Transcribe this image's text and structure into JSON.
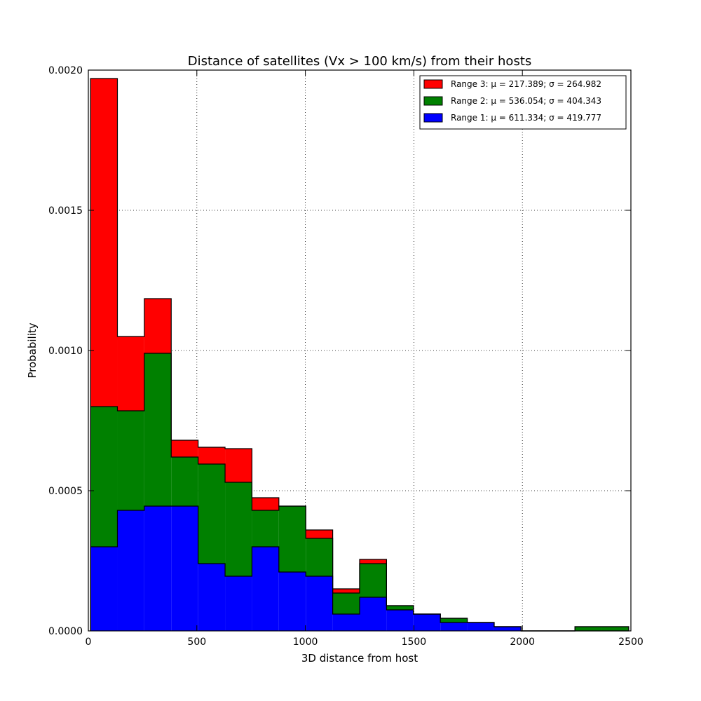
{
  "chart_data": {
    "type": "bar",
    "histogram_type": "stacked",
    "title": "Distance of satellites (Vx > 100 km/s) from their hosts",
    "xlabel": "3D distance from host",
    "ylabel": "Probability",
    "xlim": [
      0,
      2500
    ],
    "ylim": [
      0,
      0.002
    ],
    "x_ticks": [
      0,
      500,
      1000,
      1500,
      2000,
      2500
    ],
    "x_tick_labels": [
      "0",
      "500",
      "1000",
      "1500",
      "2000",
      "2500"
    ],
    "y_ticks": [
      0,
      0.0005,
      0.001,
      0.0015,
      0.002
    ],
    "y_tick_labels": [
      "0.0000",
      "0.0005",
      "0.0010",
      "0.0015",
      "0.0020"
    ],
    "grid": true,
    "legend_position": "top-right",
    "bin_edges": [
      10,
      134,
      258,
      382,
      506,
      630,
      754,
      878,
      1002,
      1126,
      1250,
      1374,
      1498,
      1622,
      1746,
      1870,
      1994,
      2118,
      2242,
      2366,
      2490
    ],
    "series": [
      {
        "name": "Range 1",
        "legend_label": "Range 1: μ = 611.334; σ = 419.777",
        "color": "#0000ff",
        "values": [
          0.0003,
          0.00043,
          0.000445,
          0.000445,
          0.00024,
          0.000195,
          0.0003,
          0.00021,
          0.000195,
          6e-05,
          0.00012,
          7.5e-05,
          6e-05,
          3e-05,
          3e-05,
          1.5e-05,
          0.0,
          0.0,
          0.0,
          0.0
        ]
      },
      {
        "name": "Range 2",
        "legend_label": "Range 2: μ = 536.054; σ = 404.343",
        "color": "#008000",
        "values": [
          0.0005,
          0.000355,
          0.000545,
          0.000175,
          0.000355,
          0.000335,
          0.00013,
          0.000235,
          0.000135,
          7.5e-05,
          0.00012,
          1.5e-05,
          0.0,
          1.5e-05,
          0.0,
          0.0,
          0.0,
          0.0,
          1.5e-05,
          1.5e-05
        ]
      },
      {
        "name": "Range 3",
        "legend_label": "Range 3: μ = 217.389; σ = 264.982",
        "color": "#ff0000",
        "values": [
          0.00117,
          0.000265,
          0.000195,
          6e-05,
          6e-05,
          0.00012,
          4.5e-05,
          0.0,
          3e-05,
          1.5e-05,
          1.5e-05,
          0.0,
          0.0,
          0.0,
          0.0,
          0.0,
          0.0,
          0.0,
          0.0,
          0.0
        ]
      }
    ]
  }
}
